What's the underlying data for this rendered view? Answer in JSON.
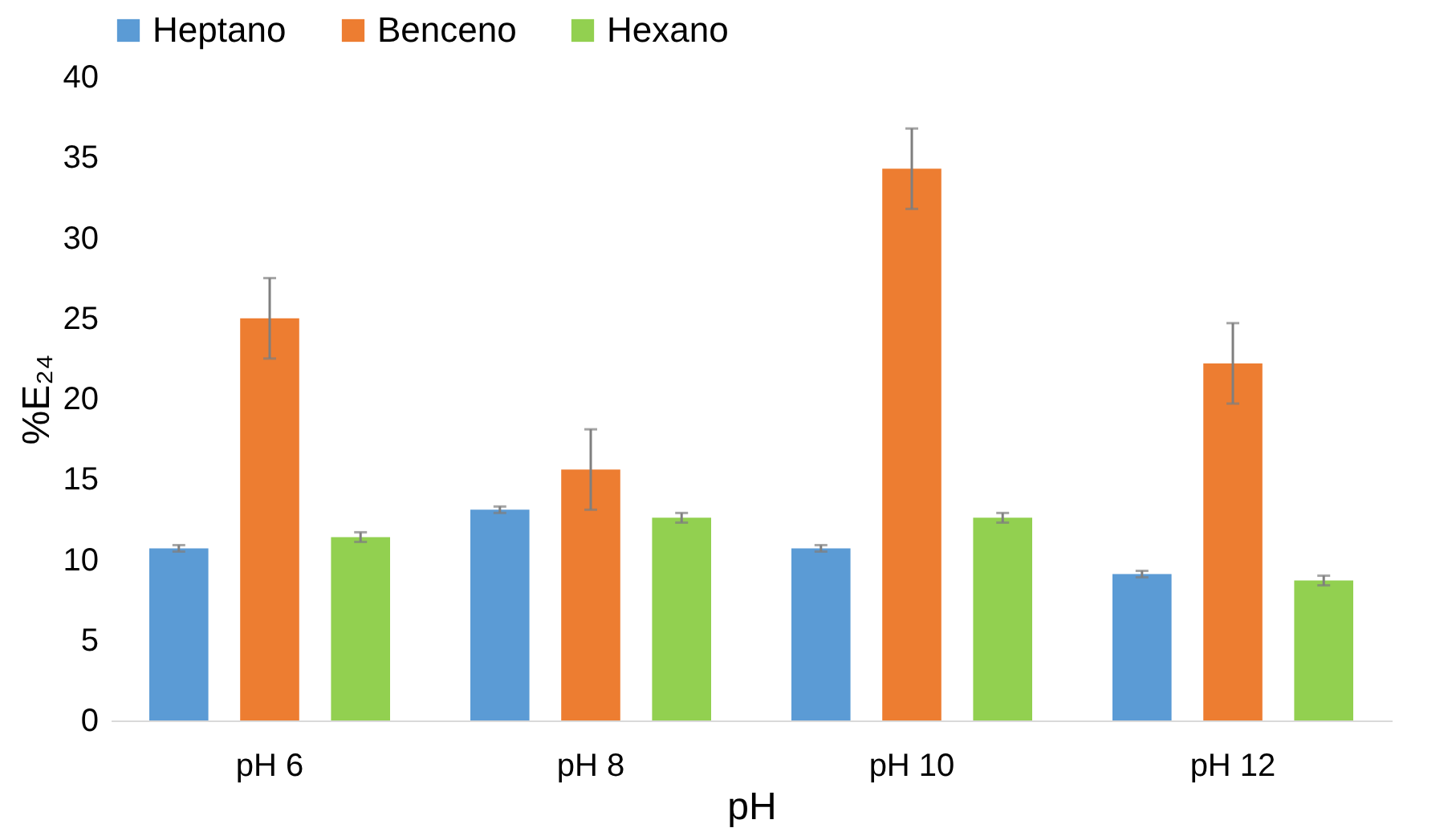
{
  "chart_data": {
    "type": "bar",
    "xlabel": "pH",
    "ylabel": "%E₂₄",
    "categories": [
      "pH 6",
      "pH 8",
      "pH 10",
      "pH 12"
    ],
    "series": [
      {
        "name": "Heptano",
        "color": "#5b9bd5",
        "values": [
          10.7,
          13.1,
          10.7,
          9.1
        ],
        "errors": [
          0.2,
          0.2,
          0.2,
          0.2
        ]
      },
      {
        "name": "Benceno",
        "color": "#ed7d31",
        "values": [
          25.0,
          15.6,
          34.3,
          22.2
        ],
        "errors": [
          2.5,
          2.5,
          2.5,
          2.5
        ]
      },
      {
        "name": "Hexano",
        "color": "#92d050",
        "values": [
          11.4,
          12.6,
          12.6,
          8.7
        ],
        "errors": [
          0.3,
          0.3,
          0.3,
          0.3
        ]
      }
    ],
    "ylim": [
      0,
      40
    ],
    "yticks": [
      0,
      5,
      10,
      15,
      20,
      25,
      30,
      35,
      40
    ],
    "grid": false,
    "legend": "top"
  }
}
